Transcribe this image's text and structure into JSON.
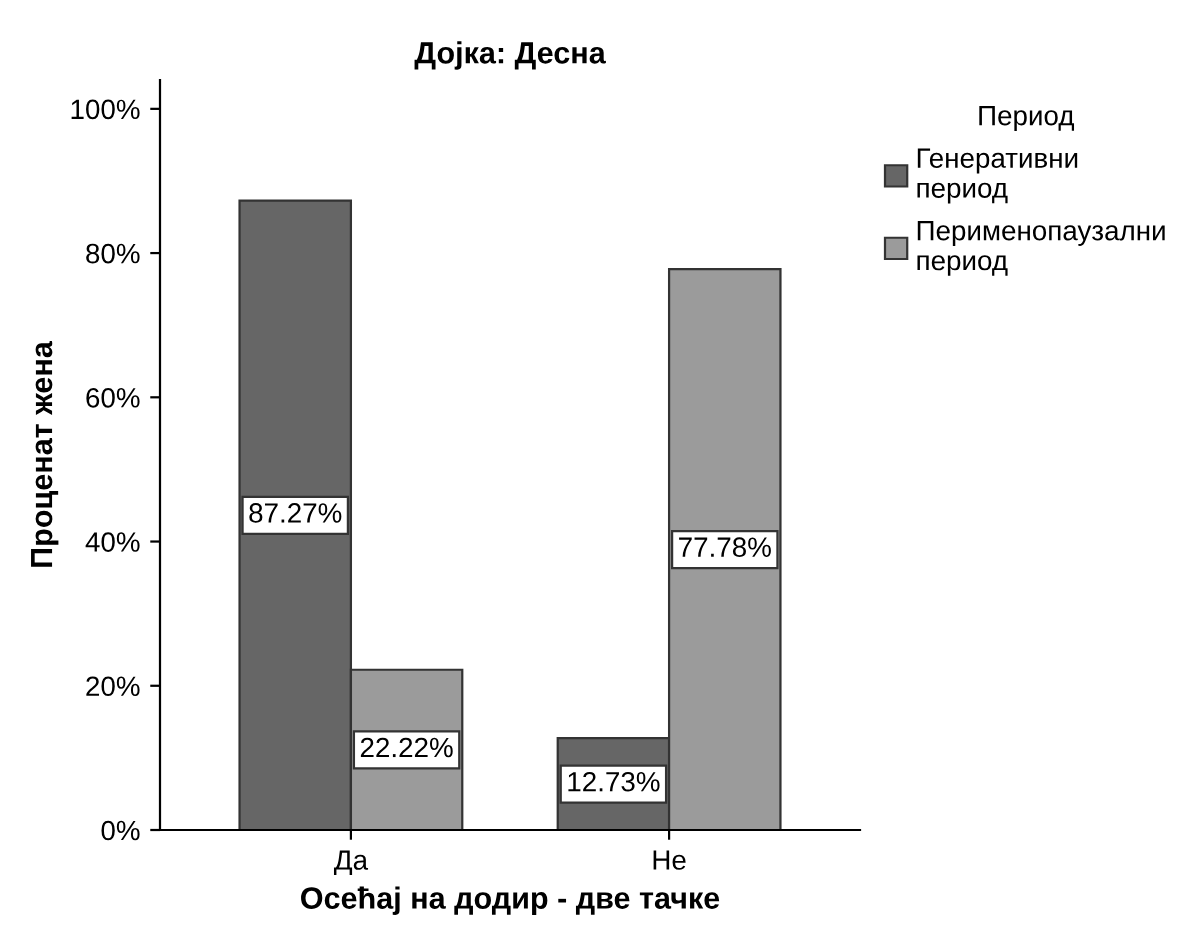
{
  "chart_data": {
    "type": "bar",
    "title": "Дојка: Десна",
    "xlabel": "Осећај на додир - две тачке",
    "ylabel": "Проценат жена",
    "legend_title": "Период",
    "legend": "top right",
    "grid": false,
    "categories": [
      "Да",
      "Не"
    ],
    "series": [
      {
        "name": "Генеративни период",
        "color": "#666666",
        "values": [
          87.27,
          12.73
        ],
        "value_labels": [
          "87.27%",
          "12.73%"
        ]
      },
      {
        "name": "Перименопаузални период",
        "color": "#9b9b9b",
        "values": [
          22.22,
          77.78
        ],
        "value_labels": [
          "22.22%",
          "77.78%"
        ]
      }
    ],
    "ylim": [
      0,
      104
    ],
    "yticks": [
      {
        "value": 0,
        "label": "0%"
      },
      {
        "value": 20,
        "label": "20%"
      },
      {
        "value": 40,
        "label": "40%"
      },
      {
        "value": 60,
        "label": "60%"
      },
      {
        "value": 80,
        "label": "80%"
      },
      {
        "value": 100,
        "label": "100%"
      }
    ]
  }
}
